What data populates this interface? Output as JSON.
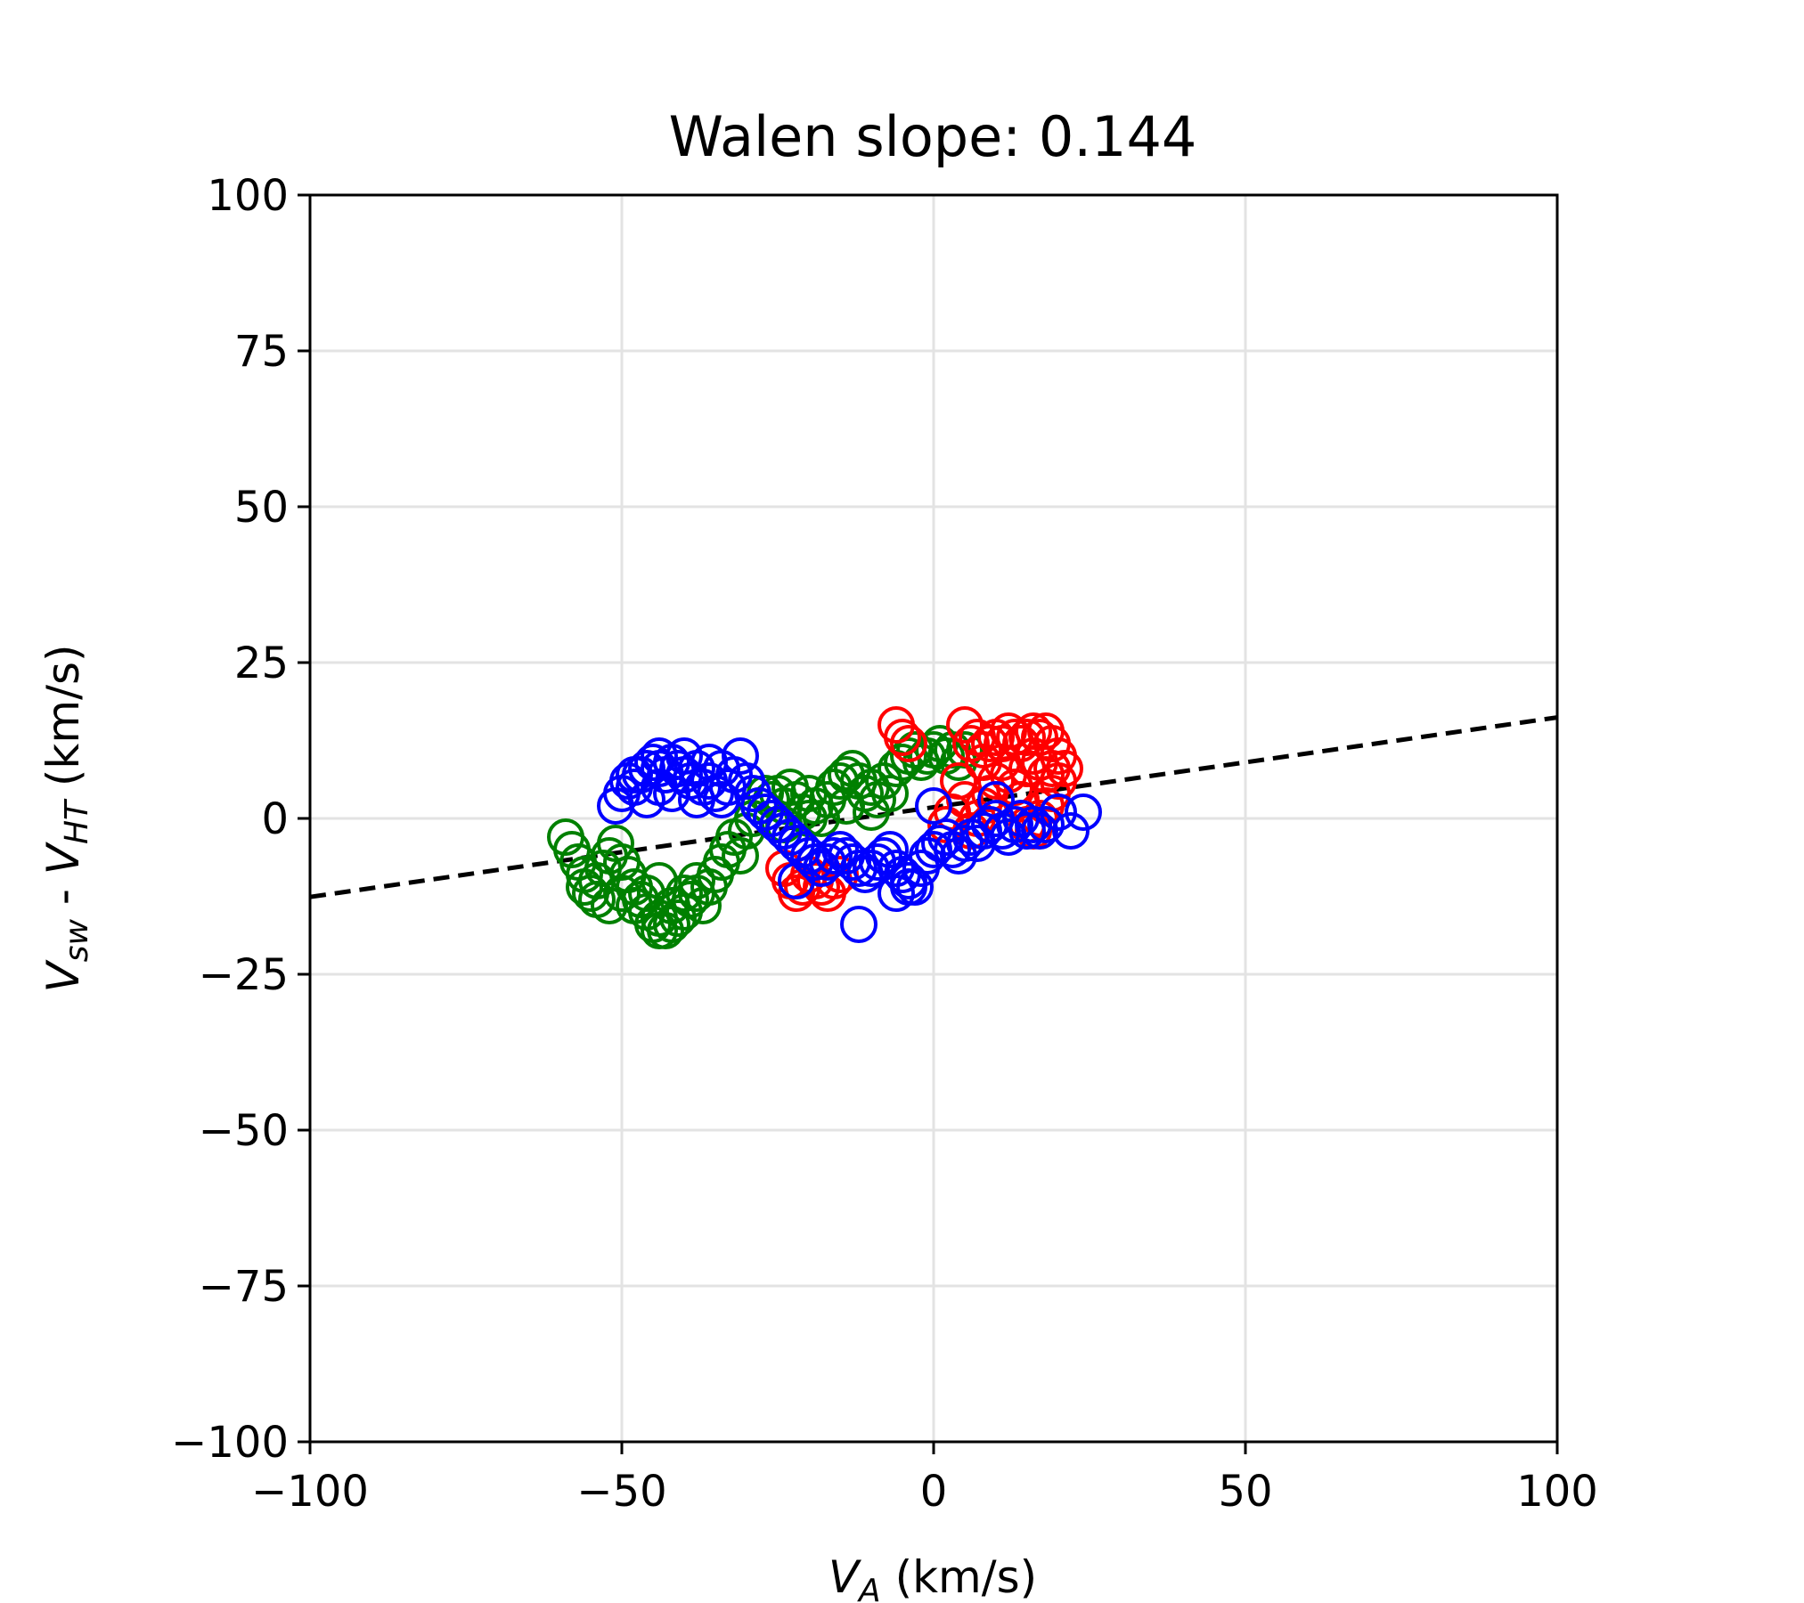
{
  "chart_data": {
    "type": "scatter",
    "title": "Walen slope: 0.144",
    "xlabel": {
      "main": "V",
      "sub": "A",
      "unit": " (km/s)"
    },
    "ylabel": {
      "main1": "V",
      "sub1": "sw",
      "mid": " - ",
      "main2": "V",
      "sub2": "HT",
      "unit": " (km/s)"
    },
    "xlim": [
      -100,
      100
    ],
    "ylim": [
      -100,
      100
    ],
    "xticks": [
      -100,
      -50,
      0,
      50,
      100
    ],
    "xtick_labels": [
      "−100",
      "−50",
      "0",
      "50",
      "100"
    ],
    "yticks": [
      -100,
      -75,
      -50,
      -25,
      0,
      25,
      50,
      75,
      100
    ],
    "ytick_labels": [
      "−100",
      "−75",
      "−50",
      "−25",
      "0",
      "25",
      "50",
      "75",
      "100"
    ],
    "grid": true,
    "fit_line": {
      "slope": 0.144,
      "intercept": 1.8,
      "color": "#000000",
      "style": "dashed"
    },
    "series": [
      {
        "color": "#008000",
        "points": [
          [
            -59,
            -3
          ],
          [
            -58,
            -5
          ],
          [
            -57,
            -7
          ],
          [
            -56,
            -9
          ],
          [
            -55,
            -12
          ],
          [
            -54,
            -10
          ],
          [
            -53,
            -8
          ],
          [
            -52,
            -6
          ],
          [
            -51,
            -4
          ],
          [
            -50,
            -7
          ],
          [
            -49,
            -9
          ],
          [
            -48,
            -11
          ],
          [
            -47,
            -13
          ],
          [
            -46,
            -15
          ],
          [
            -45,
            -17
          ],
          [
            -44,
            -18
          ],
          [
            -43,
            -18
          ],
          [
            -42,
            -17
          ],
          [
            -41,
            -16
          ],
          [
            -40,
            -15
          ],
          [
            -39,
            -13
          ],
          [
            -38,
            -12
          ],
          [
            -37,
            -14
          ],
          [
            -36,
            -11
          ],
          [
            -35,
            -9
          ],
          [
            -34,
            -7
          ],
          [
            -33,
            -5
          ],
          [
            -32,
            -3
          ],
          [
            -31,
            -6
          ],
          [
            -48,
            -14
          ],
          [
            -46,
            -12
          ],
          [
            -44,
            -16
          ],
          [
            -42,
            -14
          ],
          [
            -40,
            -12
          ],
          [
            -38,
            -10
          ],
          [
            -50,
            -12
          ],
          [
            -52,
            -14
          ],
          [
            -54,
            -13
          ],
          [
            -56,
            -11
          ],
          [
            -44,
            -10
          ],
          [
            -28,
            2
          ],
          [
            -26,
            3
          ],
          [
            -25,
            4
          ],
          [
            -24,
            2
          ],
          [
            -23,
            5
          ],
          [
            -22,
            3
          ],
          [
            -21,
            1
          ],
          [
            -20,
            4
          ],
          [
            -19,
            2
          ],
          [
            -18,
            0
          ],
          [
            -16,
            5
          ],
          [
            -15,
            6
          ],
          [
            -14,
            7
          ],
          [
            -13,
            8
          ],
          [
            -12,
            6
          ],
          [
            -11,
            4
          ],
          [
            -10,
            5
          ],
          [
            -9,
            3
          ],
          [
            -8,
            6
          ],
          [
            -7,
            4
          ],
          [
            -6,
            8
          ],
          [
            -5,
            9
          ],
          [
            -4,
            10
          ],
          [
            -3,
            11
          ],
          [
            -2,
            9
          ],
          [
            -1,
            10
          ],
          [
            0,
            11
          ],
          [
            1,
            12
          ],
          [
            2,
            10
          ],
          [
            3,
            11
          ],
          [
            4,
            9
          ],
          [
            5,
            11
          ],
          [
            -17,
            3
          ],
          [
            -14,
            2
          ],
          [
            -10,
            1
          ],
          [
            -27,
            4
          ],
          [
            -29,
            0
          ],
          [
            -30,
            -2
          ],
          [
            -24,
            -1
          ],
          [
            -20,
            0
          ]
        ]
      },
      {
        "color": "#ff0000",
        "points": [
          [
            -6,
            15
          ],
          [
            -5,
            13
          ],
          [
            -4,
            12
          ],
          [
            5,
            15
          ],
          [
            6,
            12
          ],
          [
            7,
            13
          ],
          [
            8,
            11
          ],
          [
            9,
            12
          ],
          [
            10,
            13
          ],
          [
            11,
            12
          ],
          [
            12,
            14
          ],
          [
            13,
            13
          ],
          [
            14,
            12
          ],
          [
            15,
            13
          ],
          [
            16,
            14
          ],
          [
            17,
            13
          ],
          [
            18,
            14
          ],
          [
            19,
            12
          ],
          [
            20,
            10
          ],
          [
            21,
            8
          ],
          [
            20,
            6
          ],
          [
            19,
            4
          ],
          [
            18,
            2
          ],
          [
            17,
            0
          ],
          [
            16,
            -2
          ],
          [
            15,
            -1
          ],
          [
            14,
            3
          ],
          [
            13,
            5
          ],
          [
            12,
            7
          ],
          [
            11,
            9
          ],
          [
            10,
            6
          ],
          [
            9,
            4
          ],
          [
            8,
            2
          ],
          [
            7,
            0
          ],
          [
            6,
            -2
          ],
          [
            5,
            3
          ],
          [
            4,
            6
          ],
          [
            3,
            1
          ],
          [
            2,
            -1
          ],
          [
            8,
            9
          ],
          [
            -24,
            -8
          ],
          [
            -23,
            -10
          ],
          [
            -22,
            -12
          ],
          [
            -21,
            -11
          ],
          [
            -20,
            -9
          ],
          [
            -19,
            -10
          ],
          [
            -18,
            -11
          ],
          [
            -17,
            -12
          ],
          [
            -16,
            -10
          ],
          [
            -15,
            -9
          ],
          [
            15,
            8
          ],
          [
            16,
            10
          ],
          [
            17,
            9
          ],
          [
            18,
            7
          ],
          [
            19,
            8
          ]
        ]
      },
      {
        "color": "#0000ff",
        "points": [
          [
            -51,
            2
          ],
          [
            -50,
            4
          ],
          [
            -49,
            6
          ],
          [
            -48,
            5
          ],
          [
            -47,
            7
          ],
          [
            -46,
            8
          ],
          [
            -45,
            9
          ],
          [
            -44,
            8
          ],
          [
            -43,
            7
          ],
          [
            -42,
            9
          ],
          [
            -41,
            8
          ],
          [
            -40,
            7
          ],
          [
            -39,
            6
          ],
          [
            -38,
            8
          ],
          [
            -37,
            5
          ],
          [
            -36,
            6
          ],
          [
            -35,
            4
          ],
          [
            -34,
            3
          ],
          [
            -33,
            5
          ],
          [
            -32,
            7
          ],
          [
            -31,
            10
          ],
          [
            -30,
            6
          ],
          [
            -29,
            4
          ],
          [
            -28,
            2
          ],
          [
            -27,
            1
          ],
          [
            -26,
            0
          ],
          [
            -25,
            -1
          ],
          [
            -24,
            -2
          ],
          [
            -23,
            -3
          ],
          [
            -22,
            -4
          ],
          [
            -21,
            -5
          ],
          [
            -20,
            -6
          ],
          [
            -19,
            -7
          ],
          [
            -18,
            -8
          ],
          [
            -17,
            -7
          ],
          [
            -16,
            -6
          ],
          [
            -15,
            -5
          ],
          [
            -14,
            -6
          ],
          [
            -13,
            -7
          ],
          [
            -12,
            -8
          ],
          [
            -11,
            -9
          ],
          [
            -10,
            -8
          ],
          [
            -9,
            -7
          ],
          [
            -8,
            -6
          ],
          [
            -7,
            -5
          ],
          [
            -6,
            -8
          ],
          [
            -5,
            -9
          ],
          [
            -4,
            -10
          ],
          [
            -3,
            -11
          ],
          [
            -2,
            -8
          ],
          [
            -1,
            -6
          ],
          [
            0,
            -5
          ],
          [
            1,
            -4
          ],
          [
            2,
            -3
          ],
          [
            3,
            -5
          ],
          [
            4,
            -6
          ],
          [
            5,
            -4
          ],
          [
            6,
            -3
          ],
          [
            7,
            -4
          ],
          [
            8,
            -2
          ],
          [
            9,
            -1
          ],
          [
            10,
            0
          ],
          [
            11,
            -2
          ],
          [
            12,
            -3
          ],
          [
            13,
            -1
          ],
          [
            14,
            0
          ],
          [
            15,
            -2
          ],
          [
            16,
            -1
          ],
          [
            17,
            -2
          ],
          [
            18,
            -1
          ],
          [
            20,
            1
          ],
          [
            22,
            -2
          ],
          [
            24,
            1
          ],
          [
            -12,
            -17
          ],
          [
            -6,
            -12
          ],
          [
            -4,
            -11
          ],
          [
            -22,
            -10
          ],
          [
            -46,
            3
          ],
          [
            -44,
            5
          ],
          [
            -48,
            7
          ],
          [
            -42,
            4
          ],
          [
            -38,
            3
          ],
          [
            -36,
            9
          ],
          [
            -40,
            10
          ],
          [
            -44,
            10
          ],
          [
            -34,
            8
          ],
          [
            0,
            2
          ],
          [
            10,
            3
          ]
        ]
      }
    ]
  }
}
